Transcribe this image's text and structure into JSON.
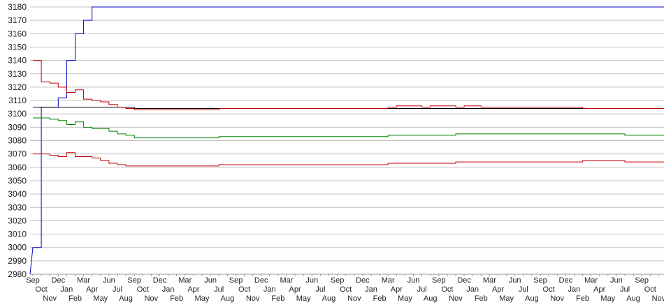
{
  "chart_data": {
    "type": "line",
    "ylim": [
      2980,
      3180
    ],
    "yticks": [
      2980,
      2990,
      3000,
      3010,
      3020,
      3030,
      3040,
      3050,
      3060,
      3070,
      3080,
      3090,
      3100,
      3110,
      3120,
      3130,
      3140,
      3150,
      3160,
      3170,
      3180
    ],
    "grid": true,
    "categories": [
      "Sep",
      "Oct",
      "Nov",
      "Dec",
      "Jan",
      "Feb",
      "Mar",
      "Apr",
      "May",
      "Jun",
      "Jul",
      "Aug",
      "Sep",
      "Oct",
      "Nov",
      "Dec",
      "Jan",
      "Feb",
      "Mar",
      "Apr",
      "May",
      "Jun",
      "Jul",
      "Aug",
      "Sep",
      "Oct",
      "Nov",
      "Dec",
      "Jan",
      "Feb",
      "Mar",
      "Apr",
      "May",
      "Jun",
      "Jul",
      "Aug",
      "Sep",
      "Oct",
      "Nov",
      "Dec",
      "Jan",
      "Feb",
      "Mar",
      "Apr",
      "May",
      "Jun",
      "Jul",
      "Aug",
      "Sep",
      "Oct",
      "Nov",
      "Dec",
      "Jan",
      "Feb",
      "Mar",
      "Apr",
      "May",
      "Jun",
      "Jul",
      "Aug",
      "Sep",
      "Oct",
      "Nov",
      "Dec",
      "Jan",
      "Feb",
      "Mar",
      "Apr",
      "May",
      "Jun",
      "Jul",
      "Aug",
      "Sep",
      "Oct",
      "Nov"
    ],
    "series": [
      {
        "color": "#0000c0",
        "values": [
          3000,
          3105,
          3105,
          3112,
          3140,
          3160,
          3170,
          3180,
          3180,
          3180,
          3180,
          3180,
          3180,
          3180,
          3180,
          3180,
          3180,
          3180,
          3180,
          3180,
          3180,
          3180,
          3180,
          3180,
          3180,
          3180,
          3180,
          3180,
          3180,
          3180,
          3180,
          3180,
          3180,
          3180,
          3180,
          3180,
          3180,
          3180,
          3180,
          3180,
          3180,
          3180,
          3180,
          3180,
          3180,
          3180,
          3180,
          3180,
          3180,
          3180,
          3180,
          3180,
          3180,
          3180,
          3180,
          3180,
          3180,
          3180,
          3180,
          3180,
          3180,
          3180,
          3180,
          3180,
          3180,
          3180,
          3180,
          3180,
          3180,
          3180,
          3180,
          3180,
          3180,
          3180,
          3180
        ]
      },
      {
        "color": "#000000",
        "values": [
          3105,
          3105,
          3105,
          3105,
          3105,
          3105,
          3105,
          3105,
          3105,
          3105,
          3105,
          3105,
          3104,
          3104,
          3104,
          3104,
          3104,
          3104,
          3104,
          3104,
          3104,
          3104,
          3104,
          3104,
          3104,
          3104,
          3104,
          3104,
          3104,
          3104,
          3104,
          3104,
          3104,
          3104,
          3104,
          3104,
          3104,
          3104,
          3104,
          3104,
          3104,
          3104,
          3104,
          3104,
          3104,
          3104,
          3104,
          3104,
          3104,
          3104,
          3104,
          3104,
          3104,
          3104,
          3104,
          3104,
          3104,
          3104,
          3104,
          3104,
          3104,
          3104,
          3104,
          3104,
          3104,
          3104,
          3104,
          3104,
          3104,
          3104,
          3104,
          3104,
          3104,
          3104,
          3104
        ]
      },
      {
        "color": "#c00000",
        "values": [
          3140,
          3124,
          3123,
          3120,
          3116,
          3118,
          3111,
          3110,
          3109,
          3107,
          3105,
          3104,
          3103,
          3103,
          3103,
          3103,
          3103,
          3103,
          3103,
          3103,
          3103,
          3103,
          3104,
          3104,
          3104,
          3104,
          3104,
          3104,
          3104,
          3104,
          3104,
          3104,
          3104,
          3104,
          3104,
          3104,
          3104,
          3104,
          3104,
          3104,
          3104,
          3104,
          3105,
          3106,
          3106,
          3106,
          3105,
          3106,
          3106,
          3106,
          3105,
          3106,
          3106,
          3105,
          3105,
          3105,
          3105,
          3105,
          3105,
          3105,
          3105,
          3105,
          3105,
          3105,
          3105,
          3104,
          3104,
          3104,
          3104,
          3104,
          3104,
          3104,
          3104,
          3104,
          3104
        ]
      },
      {
        "color": "#008000",
        "values": [
          3097,
          3097,
          3096,
          3095,
          3092,
          3094,
          3090,
          3089,
          3089,
          3087,
          3085,
          3084,
          3082,
          3082,
          3082,
          3082,
          3082,
          3082,
          3082,
          3082,
          3082,
          3082,
          3083,
          3083,
          3083,
          3083,
          3083,
          3083,
          3083,
          3083,
          3083,
          3083,
          3083,
          3083,
          3083,
          3083,
          3083,
          3083,
          3083,
          3083,
          3083,
          3083,
          3084,
          3084,
          3084,
          3084,
          3084,
          3084,
          3084,
          3084,
          3085,
          3085,
          3085,
          3085,
          3085,
          3085,
          3085,
          3085,
          3085,
          3085,
          3085,
          3085,
          3085,
          3085,
          3085,
          3085,
          3085,
          3085,
          3085,
          3085,
          3084,
          3084,
          3084,
          3084,
          3084
        ]
      },
      {
        "color": "#c00000",
        "values": [
          3070,
          3070,
          3069,
          3068,
          3071,
          3068,
          3068,
          3067,
          3065,
          3063,
          3062,
          3061,
          3061,
          3061,
          3061,
          3061,
          3061,
          3061,
          3061,
          3061,
          3061,
          3061,
          3062,
          3062,
          3062,
          3062,
          3062,
          3062,
          3062,
          3062,
          3062,
          3062,
          3062,
          3062,
          3062,
          3062,
          3062,
          3062,
          3062,
          3062,
          3062,
          3062,
          3063,
          3063,
          3063,
          3063,
          3063,
          3063,
          3063,
          3063,
          3064,
          3064,
          3064,
          3064,
          3064,
          3064,
          3064,
          3064,
          3064,
          3064,
          3064,
          3064,
          3064,
          3064,
          3064,
          3065,
          3065,
          3065,
          3065,
          3065,
          3064,
          3064,
          3064,
          3064,
          3064
        ]
      }
    ],
    "grid_color": "#c0c0c0"
  }
}
